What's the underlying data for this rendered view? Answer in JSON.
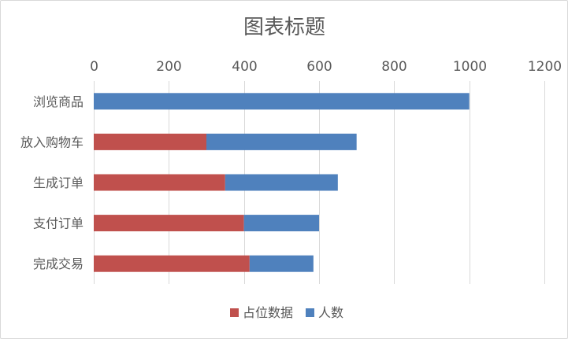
{
  "chart_data": {
    "type": "bar",
    "orientation": "horizontal",
    "stacked": true,
    "title": "图表标题",
    "xaxis_position": "top",
    "xlim": [
      0,
      1200
    ],
    "xticks": [
      0,
      200,
      400,
      600,
      800,
      1000,
      1200
    ],
    "categories": [
      "浏览商品",
      "放入购物车",
      "生成订单",
      "支付订单",
      "完成交易"
    ],
    "series": [
      {
        "name": "占位数据",
        "color": "#C0504D",
        "values": [
          0,
          300,
          350,
          400,
          415
        ]
      },
      {
        "name": "人数",
        "color": "#4F81BD",
        "values": [
          1000,
          400,
          300,
          200,
          170
        ]
      }
    ],
    "grid": "vertical",
    "legend_position": "bottom"
  }
}
